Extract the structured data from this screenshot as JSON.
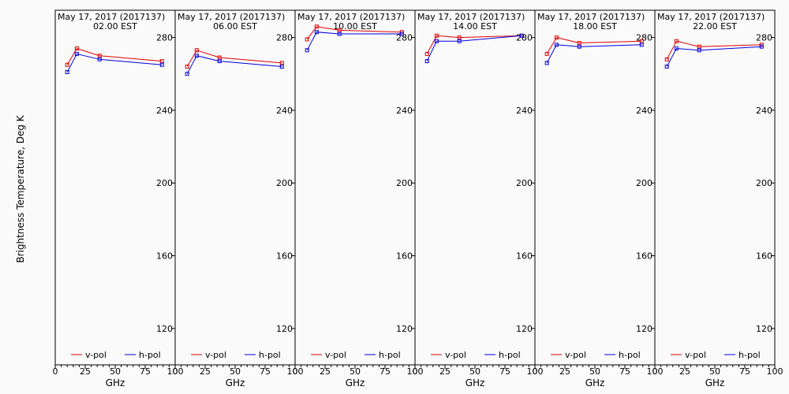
{
  "chart_data": {
    "type": "line",
    "ylabel": "Brightness Temperature, Deg K",
    "xlabel": "GHz",
    "xlim": [
      0,
      100
    ],
    "ylim": [
      100,
      295
    ],
    "xticks": [
      0,
      25,
      50,
      75,
      100
    ],
    "yticks": [
      120,
      160,
      200,
      240,
      280
    ],
    "x": [
      10,
      18,
      37,
      89
    ],
    "legend": [
      "v-pol",
      "h-pol"
    ],
    "colors": {
      "v-pol": "#e00000",
      "h-pol": "#0000e0"
    },
    "panels": [
      {
        "title_date": "May 17, 2017 (2017137)",
        "title_time": "02.00 EST",
        "series": [
          {
            "name": "v-pol",
            "values": [
              265,
              274,
              270,
              267
            ]
          },
          {
            "name": "h-pol",
            "values": [
              261,
              271,
              268,
              265
            ]
          }
        ]
      },
      {
        "title_date": "May 17, 2017 (2017137)",
        "title_time": "06.00 EST",
        "series": [
          {
            "name": "v-pol",
            "values": [
              264,
              273,
              269,
              266
            ]
          },
          {
            "name": "h-pol",
            "values": [
              260,
              270,
              267,
              264
            ]
          }
        ]
      },
      {
        "title_date": "May 17, 2017 (2017137)",
        "title_time": "10.00 EST",
        "series": [
          {
            "name": "v-pol",
            "values": [
              279,
              286,
              284,
              283
            ]
          },
          {
            "name": "h-pol",
            "values": [
              273,
              283,
              282,
              282
            ]
          }
        ]
      },
      {
        "title_date": "May 17, 2017 (2017137)",
        "title_time": "14.00 EST",
        "series": [
          {
            "name": "v-pol",
            "values": [
              271,
              281,
              280,
              281
            ]
          },
          {
            "name": "h-pol",
            "values": [
              267,
              278,
              278,
              281
            ]
          }
        ]
      },
      {
        "title_date": "May 17, 2017 (2017137)",
        "title_time": "18.00 EST",
        "series": [
          {
            "name": "v-pol",
            "values": [
              271,
              280,
              277,
              278
            ]
          },
          {
            "name": "h-pol",
            "values": [
              266,
              276,
              275,
              276
            ]
          }
        ]
      },
      {
        "title_date": "May 17, 2017 (2017137)",
        "title_time": "22.00 EST",
        "series": [
          {
            "name": "v-pol",
            "values": [
              268,
              278,
              275,
              276
            ]
          },
          {
            "name": "h-pol",
            "values": [
              264,
              274,
              273,
              275
            ]
          }
        ]
      }
    ]
  }
}
